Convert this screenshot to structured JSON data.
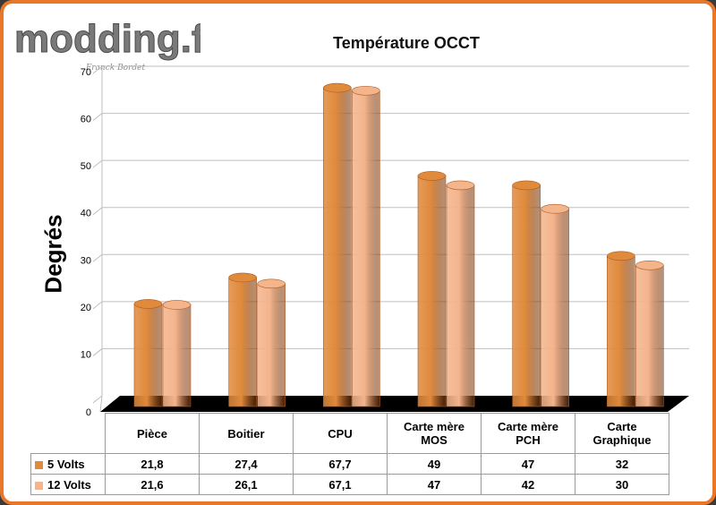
{
  "watermark": {
    "logo_text": "modding.fr",
    "signature": "Franck Bordet"
  },
  "colors": {
    "series1": "#e08a3c",
    "series2": "#f4b48c",
    "floor": "#000000",
    "grid": "#bfbfbf",
    "frame": "#e8772a"
  },
  "chart_data": {
    "type": "bar",
    "title": "Température OCCT",
    "ylabel": "Degrés",
    "xlabel": "",
    "ylim": [
      0,
      70
    ],
    "yticks": [
      0,
      10,
      20,
      30,
      40,
      50,
      60,
      70
    ],
    "grid": true,
    "categories": [
      "Pièce",
      "Boitier",
      "CPU",
      "Carte mère MOS",
      "Carte mère PCH",
      "Carte Graphique"
    ],
    "category_lines": [
      [
        "Pièce"
      ],
      [
        "Boitier"
      ],
      [
        "CPU"
      ],
      [
        "Carte mère",
        "MOS"
      ],
      [
        "Carte mère",
        "PCH"
      ],
      [
        "Carte",
        "Graphique"
      ]
    ],
    "series": [
      {
        "name": "5 Volts",
        "values": [
          21.8,
          27.4,
          67.7,
          49,
          47,
          32
        ],
        "labels": [
          "21,8",
          "27,4",
          "67,7",
          "49",
          "47",
          "32"
        ]
      },
      {
        "name": "12 Volts",
        "values": [
          21.6,
          26.1,
          67.1,
          47,
          42,
          30
        ],
        "labels": [
          "21,6",
          "26,1",
          "67,1",
          "47",
          "42",
          "30"
        ]
      }
    ]
  }
}
